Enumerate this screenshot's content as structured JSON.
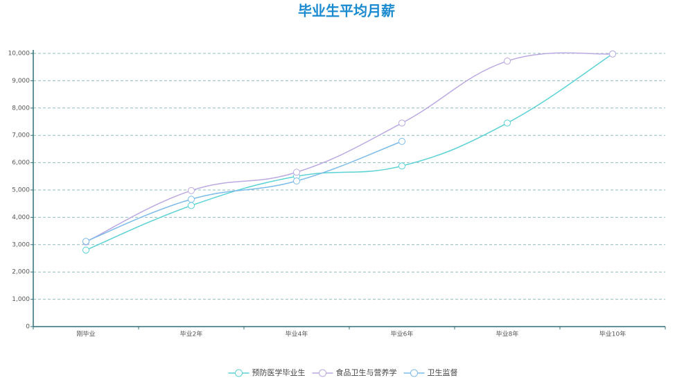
{
  "chart_data": {
    "type": "line",
    "title": "毕业生平均月薪",
    "categories": [
      "刚毕业",
      "毕业2年",
      "毕业4年",
      "毕业6年",
      "毕业8年",
      "毕业10年"
    ],
    "series": [
      {
        "name": "预防医学毕业生",
        "color": "#5ad2d6",
        "values": [
          2800,
          4430,
          5500,
          5880,
          7450,
          9980
        ]
      },
      {
        "name": "食品卫生与营养学",
        "color": "#bba9e2",
        "values": [
          3100,
          4980,
          5650,
          7450,
          9720,
          9980
        ]
      },
      {
        "name": "卫生监督",
        "color": "#7cbbe9",
        "values": [
          3120,
          4660,
          5330,
          6780,
          null,
          null
        ]
      }
    ],
    "ylim": [
      0,
      10000
    ],
    "yticks": [
      0,
      {
        "value": 1000,
        "label": "1,000"
      },
      {
        "value": 2000,
        "label": "2,000"
      },
      {
        "value": 3000,
        "label": "3,000"
      },
      {
        "value": 4000,
        "label": "4,000"
      },
      {
        "value": 5000,
        "label": "5,000"
      },
      {
        "value": 6000,
        "label": "6,000"
      },
      {
        "value": 7000,
        "label": "7,000"
      },
      {
        "value": 8000,
        "label": "8,000"
      },
      {
        "value": 9000,
        "label": "9,000"
      },
      {
        "value": 10000,
        "label": "10,000"
      }
    ],
    "grid": true,
    "legend": "bottom"
  }
}
